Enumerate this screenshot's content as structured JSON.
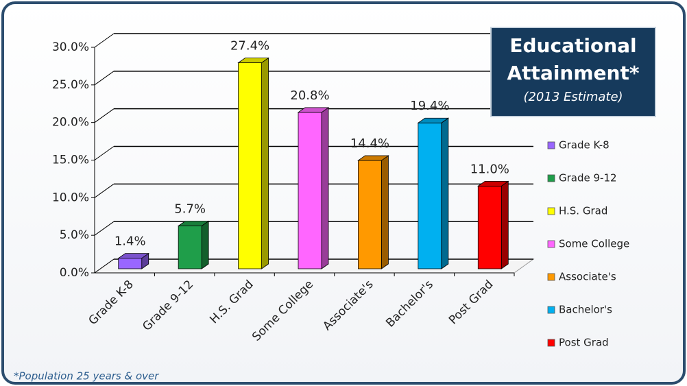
{
  "chart_data": {
    "type": "bar3d",
    "title": "Educational Attainment*",
    "subtitle": "(2013 Estimate)",
    "footnote": "*Population 25 years & over",
    "categories": [
      "Grade K-8",
      "Grade 9-12",
      "H.S. Grad",
      "Some College",
      "Associate's",
      "Bachelor's",
      "Post Grad"
    ],
    "values": [
      1.4,
      5.7,
      27.4,
      20.8,
      14.4,
      19.4,
      11.0
    ],
    "value_labels": [
      "1.4%",
      "5.7%",
      "27.4%",
      "20.8%",
      "14.4%",
      "19.4%",
      "11.0%"
    ],
    "colors": [
      "#9966ff",
      "#1f9e4a",
      "#ffff00",
      "#ff66ff",
      "#ff9900",
      "#00b0f0",
      "#ff0000"
    ],
    "ylim": [
      0,
      30
    ],
    "yticks": [
      {
        "value": 0,
        "label": "0.0%"
      },
      {
        "value": 5,
        "label": "5.0%"
      },
      {
        "value": 10,
        "label": "10.0%"
      },
      {
        "value": 15,
        "label": "15.0%"
      },
      {
        "value": 20,
        "label": "20.0%"
      },
      {
        "value": 25,
        "label": "25.0%"
      },
      {
        "value": 30,
        "label": "30.0%"
      }
    ],
    "grid": true,
    "legend": "right"
  }
}
